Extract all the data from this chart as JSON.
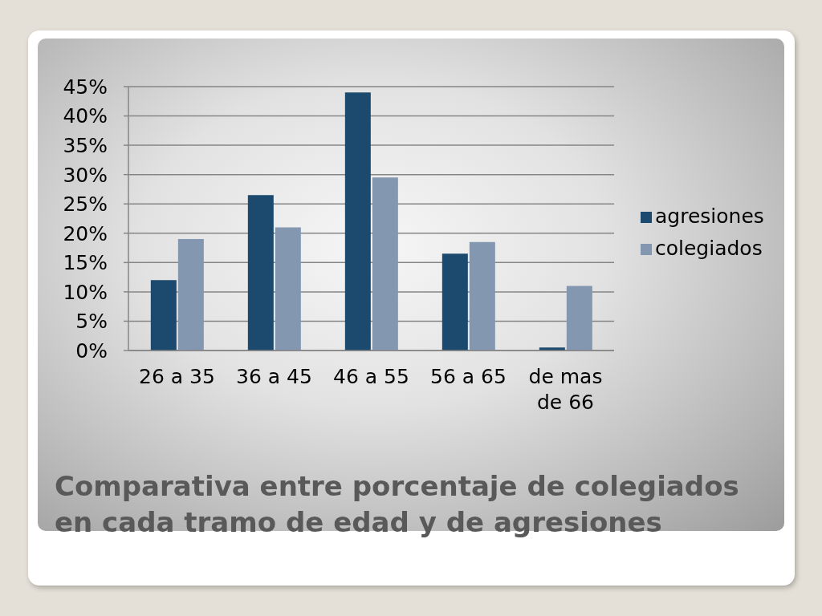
{
  "chart_data": {
    "type": "bar",
    "title": "Comparativa entre porcentaje de colegiados en cada tramo de edad y de agresiones",
    "categories": [
      "26 a 35",
      "36 a 45",
      "46 a 55",
      "56 a 65",
      "de mas de 66"
    ],
    "series": [
      {
        "name": "agresiones",
        "color": "#1b4a6e",
        "values": [
          12,
          26.5,
          44,
          16.5,
          0.5
        ]
      },
      {
        "name": "colegiados",
        "color": "#8497b0",
        "values": [
          19,
          21,
          29.5,
          18.5,
          11
        ]
      }
    ],
    "ylim": [
      0,
      45
    ],
    "yticks": [
      {
        "value": 0,
        "label": "0%"
      },
      {
        "value": 5,
        "label": "5%"
      },
      {
        "value": 10,
        "label": "10%"
      },
      {
        "value": 15,
        "label": "15%"
      },
      {
        "value": 20,
        "label": "20%"
      },
      {
        "value": 25,
        "label": "25%"
      },
      {
        "value": 30,
        "label": "30%"
      },
      {
        "value": 35,
        "label": "35%"
      },
      {
        "value": 40,
        "label": "40%"
      },
      {
        "value": 45,
        "label": "45%"
      }
    ],
    "grid": "y",
    "legend": "right"
  }
}
